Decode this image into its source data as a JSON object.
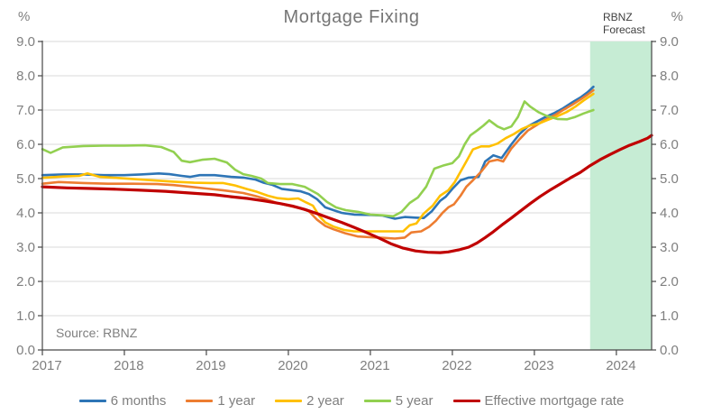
{
  "title": "Mortgage Fixing",
  "unit_left": "%",
  "unit_right": "%",
  "source": "Source: RBNZ",
  "chart_data": {
    "type": "line",
    "x_axis": {
      "min": 2017,
      "max": 2024.43,
      "tick_years": [
        2017,
        2018,
        2019,
        2020,
        2021,
        2022,
        2023,
        2024
      ]
    },
    "y_axis": {
      "min": 0,
      "max": 9,
      "ticks": [
        "0.0",
        "1.0",
        "2.0",
        "3.0",
        "4.0",
        "5.0",
        "6.0",
        "7.0",
        "8.0",
        "9.0"
      ]
    },
    "grid_on": true,
    "grid_color": "#d9d9d9",
    "axis_color": "#474747",
    "text_color": "#7f7f7f",
    "legend_position": "bottom",
    "forecast_band": {
      "start": 2023.68,
      "end": 2024.43,
      "color": "#c6ecd4",
      "label_line1": "RBNZ",
      "label_line2": "Forecast"
    },
    "series": [
      {
        "name": "6 months",
        "color": "#2e75b6",
        "width": 2.6,
        "x": [
          2017.0,
          2017.25,
          2017.5,
          2017.75,
          2018.0,
          2018.2,
          2018.42,
          2018.55,
          2018.7,
          2018.8,
          2018.92,
          2019.1,
          2019.3,
          2019.45,
          2019.6,
          2019.7,
          2019.8,
          2019.92,
          2020.05,
          2020.15,
          2020.25,
          2020.35,
          2020.45,
          2020.55,
          2020.65,
          2020.8,
          2021.0,
          2021.15,
          2021.3,
          2021.42,
          2021.55,
          2021.65,
          2021.75,
          2021.85,
          2021.92,
          2022.0,
          2022.1,
          2022.2,
          2022.32,
          2022.4,
          2022.5,
          2022.6,
          2022.72,
          2022.82,
          2022.92,
          2023.02,
          2023.12,
          2023.25,
          2023.35,
          2023.46,
          2023.57,
          2023.65,
          2023.72
        ],
        "y": [
          5.1,
          5.12,
          5.12,
          5.1,
          5.1,
          5.12,
          5.15,
          5.13,
          5.08,
          5.05,
          5.1,
          5.1,
          5.05,
          5.03,
          4.97,
          4.88,
          4.82,
          4.7,
          4.66,
          4.63,
          4.55,
          4.4,
          4.16,
          4.08,
          4.0,
          3.95,
          3.94,
          3.92,
          3.83,
          3.88,
          3.86,
          3.85,
          4.05,
          4.35,
          4.47,
          4.7,
          4.95,
          5.03,
          5.05,
          5.5,
          5.68,
          5.6,
          6.0,
          6.3,
          6.52,
          6.65,
          6.78,
          6.92,
          7.05,
          7.22,
          7.38,
          7.52,
          7.68
        ]
      },
      {
        "name": "1 year",
        "color": "#ed7d31",
        "width": 2.6,
        "x": [
          2017.0,
          2017.2,
          2017.5,
          2017.8,
          2018.1,
          2018.4,
          2018.6,
          2018.8,
          2019.0,
          2019.2,
          2019.45,
          2019.6,
          2019.7,
          2019.86,
          2020.0,
          2020.15,
          2020.25,
          2020.35,
          2020.45,
          2020.55,
          2020.7,
          2020.85,
          2021.0,
          2021.15,
          2021.3,
          2021.42,
          2021.5,
          2021.62,
          2021.72,
          2021.8,
          2021.88,
          2021.95,
          2022.02,
          2022.1,
          2022.17,
          2022.25,
          2022.35,
          2022.45,
          2022.55,
          2022.62,
          2022.72,
          2022.82,
          2022.92,
          2023.02,
          2023.12,
          2023.25,
          2023.35,
          2023.46,
          2023.57,
          2023.65,
          2023.72
        ],
        "y": [
          4.85,
          4.9,
          4.87,
          4.85,
          4.85,
          4.84,
          4.81,
          4.76,
          4.71,
          4.66,
          4.58,
          4.49,
          4.42,
          4.29,
          4.21,
          4.13,
          4.05,
          3.8,
          3.62,
          3.52,
          3.4,
          3.31,
          3.29,
          3.27,
          3.25,
          3.28,
          3.43,
          3.46,
          3.6,
          3.77,
          4.0,
          4.16,
          4.25,
          4.5,
          4.76,
          4.95,
          5.2,
          5.5,
          5.55,
          5.5,
          5.88,
          6.15,
          6.4,
          6.55,
          6.7,
          6.85,
          7.0,
          7.15,
          7.32,
          7.45,
          7.58
        ]
      },
      {
        "name": "2 year",
        "color": "#ffc000",
        "width": 2.6,
        "x": [
          2017.0,
          2017.25,
          2017.45,
          2017.55,
          2017.7,
          2017.9,
          2018.1,
          2018.35,
          2018.6,
          2018.85,
          2019.05,
          2019.2,
          2019.35,
          2019.5,
          2019.62,
          2019.75,
          2019.87,
          2020.0,
          2020.12,
          2020.22,
          2020.3,
          2020.38,
          2020.45,
          2020.55,
          2020.68,
          2020.8,
          2021.0,
          2021.2,
          2021.4,
          2021.48,
          2021.56,
          2021.65,
          2021.76,
          2021.85,
          2021.95,
          2022.03,
          2022.1,
          2022.17,
          2022.25,
          2022.35,
          2022.45,
          2022.55,
          2022.65,
          2022.75,
          2022.85,
          2022.95,
          2023.05,
          2023.15,
          2023.28,
          2023.4,
          2023.5,
          2023.6,
          2023.72
        ],
        "y": [
          5.02,
          5.06,
          5.08,
          5.15,
          5.05,
          5.02,
          4.99,
          4.95,
          4.91,
          4.88,
          4.87,
          4.87,
          4.8,
          4.69,
          4.61,
          4.5,
          4.43,
          4.4,
          4.42,
          4.3,
          4.21,
          3.9,
          3.72,
          3.6,
          3.5,
          3.46,
          3.46,
          3.46,
          3.46,
          3.64,
          3.69,
          3.98,
          4.21,
          4.5,
          4.66,
          4.9,
          5.2,
          5.5,
          5.85,
          5.94,
          5.94,
          6.02,
          6.18,
          6.3,
          6.45,
          6.55,
          6.6,
          6.7,
          6.82,
          6.95,
          7.1,
          7.28,
          7.47
        ]
      },
      {
        "name": "5 year",
        "color": "#92d050",
        "width": 2.6,
        "x": [
          2017.0,
          2017.1,
          2017.25,
          2017.5,
          2017.75,
          2018.0,
          2018.25,
          2018.45,
          2018.6,
          2018.7,
          2018.8,
          2018.95,
          2019.1,
          2019.25,
          2019.35,
          2019.45,
          2019.55,
          2019.67,
          2019.75,
          2019.9,
          2020.05,
          2020.2,
          2020.36,
          2020.47,
          2020.58,
          2020.7,
          2020.85,
          2021.0,
          2021.15,
          2021.28,
          2021.38,
          2021.48,
          2021.58,
          2021.68,
          2021.78,
          2021.9,
          2022.0,
          2022.08,
          2022.15,
          2022.22,
          2022.3,
          2022.38,
          2022.45,
          2022.55,
          2022.63,
          2022.72,
          2022.8,
          2022.88,
          2022.95,
          2023.05,
          2023.15,
          2023.28,
          2023.4,
          2023.5,
          2023.6,
          2023.72
        ],
        "y": [
          5.86,
          5.75,
          5.91,
          5.95,
          5.96,
          5.96,
          5.97,
          5.92,
          5.78,
          5.52,
          5.48,
          5.55,
          5.58,
          5.47,
          5.26,
          5.13,
          5.08,
          5.0,
          4.87,
          4.84,
          4.84,
          4.76,
          4.55,
          4.32,
          4.16,
          4.08,
          4.03,
          3.95,
          3.93,
          3.9,
          4.03,
          4.29,
          4.45,
          4.76,
          5.29,
          5.39,
          5.45,
          5.65,
          6.0,
          6.26,
          6.4,
          6.55,
          6.7,
          6.52,
          6.44,
          6.52,
          6.8,
          7.25,
          7.1,
          6.94,
          6.83,
          6.74,
          6.73,
          6.8,
          6.9,
          7.0
        ]
      },
      {
        "name": "Effective mortgage rate",
        "color": "#c00000",
        "width": 3.2,
        "x": [
          2017.0,
          2017.3,
          2017.6,
          2017.9,
          2018.2,
          2018.5,
          2018.8,
          2019.1,
          2019.3,
          2019.5,
          2019.7,
          2019.9,
          2020.05,
          2020.2,
          2020.35,
          2020.5,
          2020.65,
          2020.8,
          2020.95,
          2021.1,
          2021.25,
          2021.4,
          2021.55,
          2021.7,
          2021.85,
          2021.95,
          2022.08,
          2022.2,
          2022.3,
          2022.4,
          2022.5,
          2022.6,
          2022.72,
          2022.84,
          2022.95,
          2023.07,
          2023.2,
          2023.32,
          2023.44,
          2023.56,
          2023.68,
          2023.8,
          2023.92,
          2024.04,
          2024.16,
          2024.28,
          2024.38,
          2024.43
        ],
        "y": [
          4.76,
          4.73,
          4.71,
          4.69,
          4.66,
          4.63,
          4.58,
          4.53,
          4.47,
          4.42,
          4.35,
          4.27,
          4.2,
          4.1,
          3.98,
          3.85,
          3.72,
          3.58,
          3.43,
          3.27,
          3.1,
          2.97,
          2.89,
          2.85,
          2.84,
          2.86,
          2.92,
          3.0,
          3.12,
          3.28,
          3.45,
          3.64,
          3.85,
          4.07,
          4.27,
          4.48,
          4.68,
          4.85,
          5.02,
          5.18,
          5.38,
          5.55,
          5.7,
          5.84,
          5.97,
          6.08,
          6.18,
          6.26
        ]
      }
    ]
  }
}
